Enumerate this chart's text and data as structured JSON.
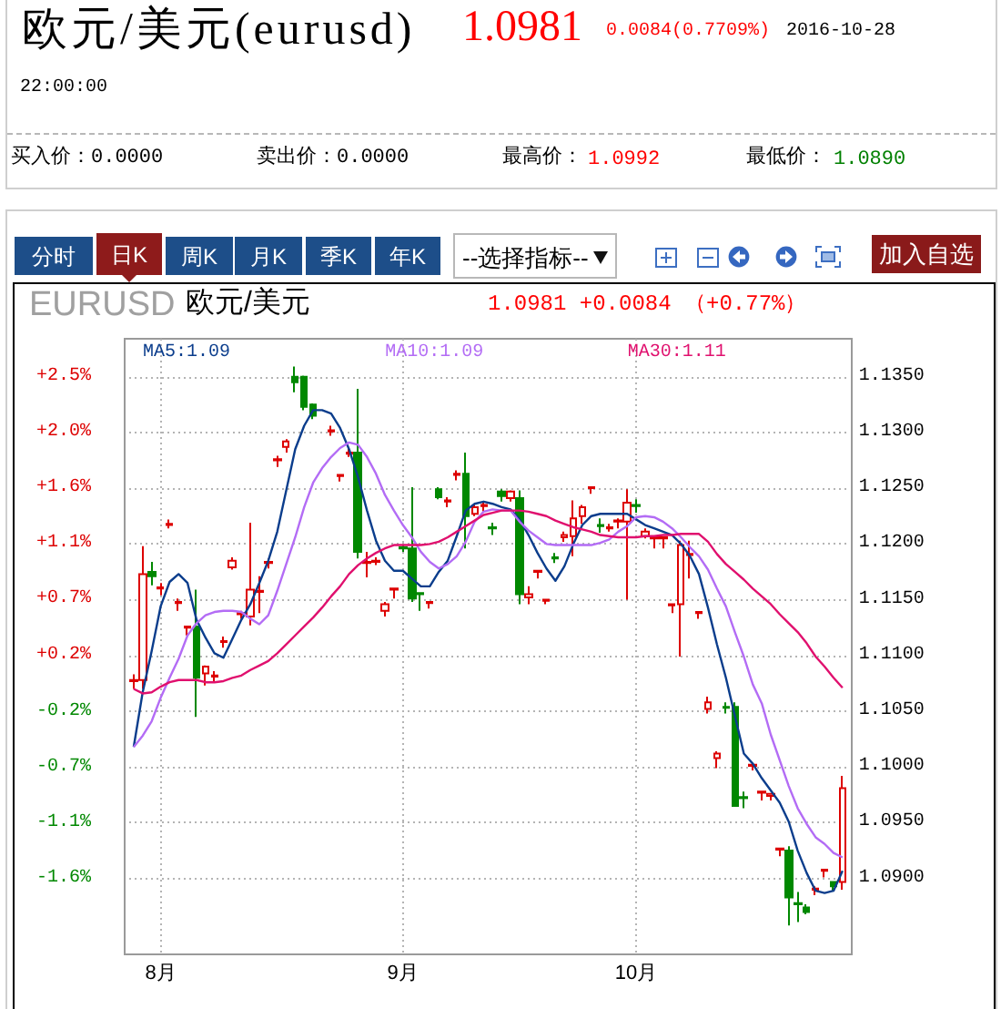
{
  "chart_data": {
    "type": "candlestick",
    "title": "欧元/美元(eurusd)",
    "annotations": [
      "1.0981",
      "0.0084(0.7709%)",
      "2016-10-28",
      "22:00:00",
      "买入价：0.0000",
      "卖出价：0.0000",
      "最高价：",
      "1.0992",
      "最低价：",
      "1.0890",
      "分时",
      "日K",
      "周K",
      "月K",
      "季K",
      "年K",
      "--选择指标--",
      "加入自选",
      "EURUSD",
      "欧元/美元",
      "1.0981 +0.0084 （+0.77%）"
    ],
    "categories": [
      null,
      null,
      null,
      "8月",
      null,
      null,
      null,
      null,
      null,
      null,
      null,
      null,
      null,
      null,
      null,
      null,
      null,
      null,
      null,
      null,
      null,
      null,
      null,
      null,
      null,
      null,
      null,
      null,
      null,
      null,
      "9月",
      null,
      null,
      null,
      null,
      null,
      null,
      null,
      null,
      null,
      null,
      null,
      null,
      null,
      null,
      null,
      null,
      null,
      null,
      null,
      null,
      null,
      null,
      null,
      null,
      null,
      "10月",
      null,
      null,
      null,
      null,
      null,
      null,
      null,
      null,
      null,
      null,
      null,
      null,
      null,
      null,
      null,
      null,
      null,
      null,
      null,
      null,
      null,
      null,
      null
    ],
    "series": [
      {
        "ohlc": [
          [
            1.1077,
            1.1083,
            1.107,
            1.1078
          ],
          [
            1.1078,
            1.1198,
            1.107,
            1.1173
          ],
          [
            1.1175,
            1.1184,
            1.1163,
            1.1171
          ],
          [
            1.116,
            1.1165,
            1.1154,
            1.1161
          ],
          [
            1.1217,
            1.1222,
            1.1214,
            1.1218
          ],
          [
            1.1147,
            1.1151,
            1.114,
            1.1148
          ],
          [
            1.1125,
            1.1126,
            1.1118,
            1.1126
          ],
          [
            1.1126,
            1.1159,
            1.1045,
            1.108
          ],
          [
            1.1084,
            1.1091,
            1.1073,
            1.109
          ],
          [
            1.1081,
            1.1086,
            1.1076,
            1.1082
          ],
          [
            1.1112,
            1.1117,
            1.1107,
            1.1113
          ],
          [
            1.1179,
            1.1188,
            1.1177,
            1.1185
          ],
          [
            1.1137,
            1.114,
            1.1133,
            1.1138
          ],
          [
            1.1135,
            1.1219,
            1.1127,
            1.1159
          ],
          [
            1.1157,
            1.1171,
            1.1138,
            1.1158
          ],
          [
            1.1183,
            1.1187,
            1.1178,
            1.1184
          ],
          [
            1.1275,
            1.1279,
            1.1269,
            1.1276
          ],
          [
            1.1287,
            1.1294,
            1.1282,
            1.1292
          ],
          [
            1.135,
            1.1359,
            1.1336,
            1.1345
          ],
          [
            1.135,
            1.1351,
            1.132,
            1.1323
          ],
          [
            1.1325,
            1.1326,
            1.1312,
            1.1315
          ],
          null,
          [
            1.1301,
            1.1306,
            1.1297,
            1.1302
          ],
          [
            1.1261,
            1.1262,
            1.1256,
            1.1262
          ],
          [
            1.1281,
            1.1286,
            1.1278,
            1.1282
          ],
          [
            1.1282,
            1.1339,
            1.1187,
            1.1193
          ],
          [
            1.1183,
            1.1193,
            1.117,
            1.1184
          ],
          [
            1.1184,
            1.1188,
            1.1181,
            1.1185
          ],
          [
            1.114,
            1.1148,
            1.1135,
            1.1146
          ],
          [
            1.1159,
            1.116,
            1.1151,
            1.116
          ],
          [
            1.1197,
            1.1199,
            1.1193,
            1.1196
          ],
          [
            1.1196,
            1.1251,
            1.1148,
            1.1151
          ],
          [
            1.1156,
            1.1156,
            1.114,
            1.1155
          ],
          [
            1.1147,
            1.1148,
            1.1142,
            1.1148
          ],
          [
            1.1249,
            1.1251,
            1.124,
            1.1242
          ],
          [
            1.1238,
            1.1242,
            1.1233,
            1.1239
          ],
          [
            1.1262,
            1.1266,
            1.1257,
            1.1263
          ],
          [
            1.1263,
            1.1282,
            1.1196,
            1.1225
          ],
          [
            1.1227,
            1.1236,
            1.1225,
            1.1233
          ],
          [
            1.1234,
            1.1238,
            1.1229,
            1.1235
          ],
          [
            1.1215,
            1.1219,
            1.1208,
            1.1214
          ],
          [
            1.1247,
            1.1249,
            1.1238,
            1.1243
          ],
          [
            1.1241,
            1.1248,
            1.1238,
            1.1247
          ],
          [
            1.1241,
            1.1248,
            1.1146,
            1.1155
          ],
          [
            1.1152,
            1.1162,
            1.1146,
            1.1155
          ],
          [
            1.1175,
            1.1176,
            1.1169,
            1.1176
          ],
          [
            1.1149,
            1.115,
            1.1146,
            1.115
          ],
          [
            1.1188,
            1.1192,
            1.1183,
            1.1187
          ],
          [
            1.1206,
            1.1211,
            1.1202,
            1.1208
          ],
          [
            1.1207,
            1.1239,
            1.1189,
            1.1223
          ],
          [
            1.1225,
            1.1235,
            1.1218,
            1.1233
          ],
          [
            1.125,
            1.1251,
            1.1245,
            1.1251
          ],
          [
            1.1217,
            1.1223,
            1.121,
            1.1216
          ],
          [
            1.1214,
            1.1218,
            1.1211,
            1.1215
          ],
          [
            1.122,
            1.1223,
            1.1214,
            1.1221
          ],
          [
            1.122,
            1.1249,
            1.115,
            1.1237
          ],
          [
            1.1235,
            1.124,
            1.1228,
            1.1234
          ],
          [
            1.1207,
            1.1214,
            1.1205,
            1.1211
          ],
          [
            1.1205,
            1.1206,
            1.1196,
            1.1206
          ],
          [
            1.1205,
            1.1206,
            1.1196,
            1.1206
          ],
          [
            1.1145,
            1.1146,
            1.1138,
            1.1146
          ],
          [
            1.1146,
            1.1203,
            1.1099,
            1.1199
          ],
          [
            1.119,
            1.1203,
            1.1169,
            1.1191
          ],
          [
            1.1138,
            1.1139,
            1.1133,
            1.1139
          ],
          [
            1.1052,
            1.1063,
            1.1048,
            1.1058
          ],
          [
            1.1008,
            1.1014,
            1.0999,
            1.1012
          ],
          [
            1.1054,
            1.1058,
            1.1048,
            1.1053
          ],
          [
            1.1054,
            1.1058,
            1.0965,
            1.0965
          ],
          [
            1.0973,
            1.0978,
            1.0963,
            1.0972
          ],
          [
            1.1001,
            1.1002,
            1.0997,
            1.1002
          ],
          [
            1.0977,
            1.0978,
            1.097,
            1.0978
          ],
          [
            1.0974,
            1.0976,
            1.097,
            1.0976
          ],
          [
            1.0926,
            1.0927,
            1.092,
            1.0927
          ],
          [
            1.0925,
            1.0929,
            1.0858,
            1.0883
          ],
          [
            1.0878,
            1.0888,
            1.0861,
            1.0877
          ],
          [
            1.0874,
            1.0877,
            1.0868,
            1.087
          ],
          [
            1.089,
            1.0893,
            1.0885,
            1.0891
          ],
          [
            1.0907,
            1.0908,
            1.0901,
            1.0908
          ],
          [
            1.0897,
            1.0897,
            1.0889,
            1.0893
          ],
          [
            1.0897,
            1.0992,
            1.089,
            1.0981
          ]
        ],
        "colors": [
          "#dd0000",
          "#dd0000",
          "#008800",
          "#dd0000",
          "#dd0000",
          "#dd0000",
          "#dd0000",
          "#008800",
          "#dd0000",
          "#dd0000",
          "#dd0000",
          "#dd0000",
          "#dd0000",
          "#dd0000",
          "#dd0000",
          "#dd0000",
          "#dd0000",
          "#dd0000",
          "#008800",
          "#008800",
          "#008800",
          null,
          "#dd0000",
          "#dd0000",
          "#dd0000",
          "#008800",
          "#dd0000",
          "#dd0000",
          "#dd0000",
          "#dd0000",
          "#008800",
          "#008800",
          "#008800",
          "#dd0000",
          "#008800",
          "#dd0000",
          "#dd0000",
          "#008800",
          "#dd0000",
          "#dd0000",
          "#008800",
          "#008800",
          "#dd0000",
          "#008800",
          "#dd0000",
          "#dd0000",
          "#dd0000",
          "#008800",
          "#dd0000",
          "#dd0000",
          "#dd0000",
          "#dd0000",
          "#008800",
          "#dd0000",
          "#dd0000",
          "#dd0000",
          "#008800",
          "#dd0000",
          "#dd0000",
          "#dd0000",
          "#dd0000",
          "#dd0000",
          "#dd0000",
          "#dd0000",
          "#dd0000",
          "#dd0000",
          "#008800",
          "#008800",
          "#008800",
          "#dd0000",
          "#dd0000",
          "#dd0000",
          "#dd0000",
          "#008800",
          "#008800",
          "#008800",
          "#dd0000",
          "#dd0000",
          "#008800",
          "#dd0000"
        ]
      },
      {
        "type": "line",
        "name": "MA5:1.09",
        "color": "#0b3d8c",
        "values": [
          1.1018,
          1.1067,
          1.1104,
          1.1144,
          1.1166,
          1.1173,
          1.1165,
          1.1132,
          1.1116,
          1.1102,
          1.1098,
          1.1115,
          1.1132,
          1.1146,
          1.1165,
          1.1185,
          1.1211,
          1.1248,
          1.1285,
          1.1306,
          1.132,
          1.132,
          1.1317,
          1.1304,
          1.1285,
          1.126,
          1.123,
          1.1203,
          1.1185,
          1.1176,
          1.1176,
          1.1169,
          1.1162,
          1.1162,
          1.1175,
          1.1185,
          1.1207,
          1.123,
          1.1236,
          1.1238,
          1.1236,
          1.1233,
          1.1231,
          1.1222,
          1.1208,
          1.1192,
          1.1178,
          1.1167,
          1.118,
          1.12,
          1.1217,
          1.1225,
          1.1227,
          1.1227,
          1.1227,
          1.1227,
          1.1222,
          1.1217,
          1.1214,
          1.1211,
          1.1208,
          1.12,
          1.1189,
          1.1173,
          1.1143,
          1.111,
          1.108,
          1.1046,
          1.1012,
          1.1003,
          1.099,
          1.0979,
          1.0968,
          1.0951,
          1.0925,
          1.0905,
          1.0889,
          1.0887,
          1.0889,
          1.0907
        ]
      },
      {
        "type": "line",
        "name": "MA10:1.09",
        "color": "#b36cf5",
        "values": [
          1.1018,
          1.1028,
          1.1041,
          1.1062,
          1.108,
          1.1097,
          1.1118,
          1.1129,
          1.1136,
          1.1139,
          1.114,
          1.114,
          1.1139,
          1.1133,
          1.1128,
          1.1136,
          1.1158,
          1.1182,
          1.1206,
          1.1233,
          1.1255,
          1.1268,
          1.1278,
          1.1286,
          1.1291,
          1.1289,
          1.1278,
          1.1263,
          1.1244,
          1.123,
          1.1217,
          1.1206,
          1.1193,
          1.1184,
          1.1178,
          1.1182,
          1.1189,
          1.1202,
          1.122,
          1.1229,
          1.1231,
          1.123,
          1.123,
          1.122,
          1.1212,
          1.1206,
          1.12,
          1.1199,
          1.1199,
          1.1199,
          1.1199,
          1.1199,
          1.1201,
          1.1204,
          1.1211,
          1.1216,
          1.1224,
          1.1225,
          1.1224,
          1.122,
          1.1214,
          1.1206,
          1.1197,
          1.1189,
          1.1177,
          1.116,
          1.1144,
          1.1121,
          1.1099,
          1.1074,
          1.1057,
          1.1029,
          1.1006,
          1.0983,
          1.0963,
          1.0949,
          1.0937,
          1.0931,
          1.0923,
          1.0919
        ]
      },
      {
        "type": "line",
        "name": "MA30:1.11",
        "color": "#e0106e",
        "values": [
          1.107,
          1.1066,
          1.1067,
          1.1072,
          1.1076,
          1.1078,
          1.1078,
          1.1078,
          1.1076,
          1.1076,
          1.1077,
          1.108,
          1.1082,
          1.1087,
          1.1091,
          1.1095,
          1.1102,
          1.111,
          1.1118,
          1.1126,
          1.1134,
          1.1143,
          1.1153,
          1.1162,
          1.1173,
          1.1181,
          1.1187,
          1.1192,
          1.1196,
          1.1199,
          1.1199,
          1.1199,
          1.1199,
          1.12,
          1.1202,
          1.1206,
          1.1211,
          1.1216,
          1.1221,
          1.1226,
          1.1228,
          1.123,
          1.123,
          1.123,
          1.1229,
          1.1227,
          1.1225,
          1.1221,
          1.1218,
          1.1215,
          1.1213,
          1.1211,
          1.1208,
          1.1207,
          1.1206,
          1.1206,
          1.1206,
          1.1207,
          1.1207,
          1.1208,
          1.1208,
          1.1209,
          1.1209,
          1.1209,
          1.1202,
          1.1191,
          1.1182,
          1.1175,
          1.1168,
          1.116,
          1.1153,
          1.1146,
          1.1137,
          1.1129,
          1.1121,
          1.1111,
          1.1099,
          1.109,
          1.108,
          1.1071
        ]
      }
    ],
    "ylim": [
      1.0832,
      1.1384
    ],
    "yticks": [
      {
        "value": 1.135,
        "label": "1.1350"
      },
      {
        "value": 1.13,
        "label": "1.1300"
      },
      {
        "value": 1.125,
        "label": "1.1250"
      },
      {
        "value": 1.12,
        "label": "1.1200"
      },
      {
        "value": 1.115,
        "label": "1.1150"
      },
      {
        "value": 1.11,
        "label": "1.1100"
      },
      {
        "value": 1.105,
        "label": "1.1050"
      },
      {
        "value": 1.1,
        "label": "1.1000"
      },
      {
        "value": 1.095,
        "label": "1.0950"
      },
      {
        "value": 1.09,
        "label": "1.0900"
      }
    ],
    "y2lim": [
      -2.19,
      2.79
    ],
    "y2ticks": [
      {
        "value": 2.48,
        "label": "+2.5%"
      },
      {
        "value": 2.03,
        "label": "+2.0%"
      },
      {
        "value": 1.58,
        "label": "+1.6%"
      },
      {
        "value": 1.13,
        "label": "+1.1%"
      },
      {
        "value": 0.68,
        "label": "+0.7%"
      },
      {
        "value": 0.23,
        "label": "+0.2%"
      },
      {
        "value": -0.23,
        "label": "-0.2%"
      },
      {
        "value": -0.68,
        "label": "-0.7%"
      },
      {
        "value": -1.13,
        "label": "-1.1%"
      },
      {
        "value": -1.58,
        "label": "-1.6%"
      }
    ],
    "grid": true,
    "legend": "top"
  }
}
